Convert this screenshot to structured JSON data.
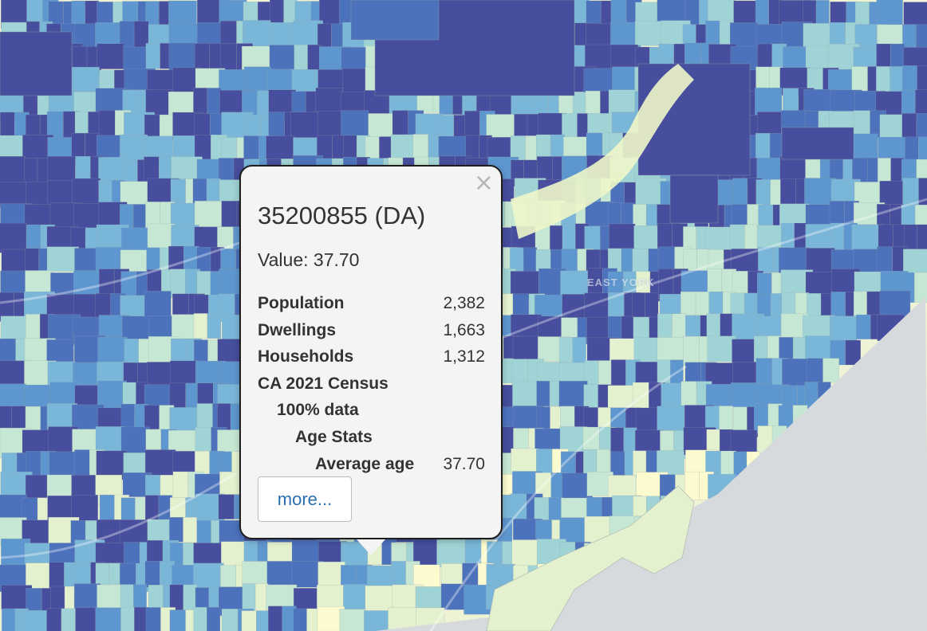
{
  "map": {
    "place_label": "EAST YORK",
    "colors": {
      "ramp": [
        "#fbfbcf",
        "#e4f1cf",
        "#c6e7d3",
        "#a0d3d5",
        "#7ab6d8",
        "#5e96cf",
        "#4c72bc",
        "#464e9d"
      ],
      "water": "#d7dadd",
      "land": "#eef3d6"
    }
  },
  "popup": {
    "close_icon": "×",
    "title": "35200855 (DA)",
    "value_text": "Value: 37.70",
    "rows": [
      {
        "label": "Population",
        "value": "2,382"
      },
      {
        "label": "Dwellings",
        "value": "1,663"
      },
      {
        "label": "Households",
        "value": "1,312"
      },
      {
        "label": "CA 2021 Census",
        "value": ""
      },
      {
        "label": "100% data",
        "value": ""
      },
      {
        "label": "Age Stats",
        "value": ""
      },
      {
        "label": "Average age",
        "value": "37.70"
      }
    ],
    "more_label": "more..."
  }
}
